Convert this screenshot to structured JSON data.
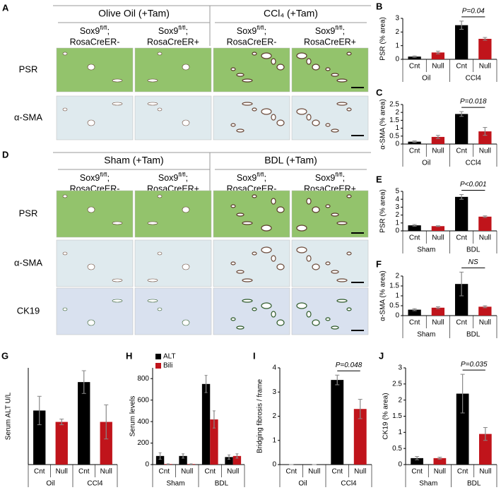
{
  "panel_a": {
    "label": "A",
    "groups": [
      "Olive Oil (+Tam)",
      "CCl₄ (+Tam)"
    ],
    "genotypes": [
      {
        "gene": "Sox9",
        "sup": "fl/fl",
        "sep": ";",
        "line2": "RosaCreER-"
      },
      {
        "gene": "Sox9",
        "sup": "fl/fl",
        "sep": ";",
        "line2": "RosaCreER+"
      },
      {
        "gene": "Sox9",
        "sup": "fl/fl",
        "sep": ";",
        "line2": "RosaCreER-"
      },
      {
        "gene": "Sox9",
        "sup": "fl/fl",
        "sep": ";",
        "line2": "RosaCreER+"
      }
    ],
    "rows": [
      "PSR",
      "α-SMA"
    ]
  },
  "panel_d": {
    "label": "D",
    "groups": [
      "Sham (+Tam)",
      "BDL (+Tam)"
    ],
    "genotypes": [
      {
        "gene": "Sox9",
        "sup": "fl/fl",
        "sep": ";",
        "line2": "RosaCreER-"
      },
      {
        "gene": "Sox9",
        "sup": "fl/fl",
        "sep": ";",
        "line2": "RosaCreER+"
      },
      {
        "gene": "Sox9",
        "sup": "fl/fl",
        "sep": ";",
        "line2": "RosaCreER-"
      },
      {
        "gene": "Sox9",
        "sup": "fl/fl",
        "sep": ";",
        "line2": "RosaCreER+"
      }
    ],
    "rows": [
      "PSR",
      "α-SMA",
      "CK19"
    ]
  },
  "chart_data": [
    {
      "type": "bar",
      "label": "B",
      "ylabel": "PSR (% area)",
      "categories": [
        "Cnt",
        "Null",
        "Cnt",
        "Null"
      ],
      "groups": [
        "Oil",
        "CCl4"
      ],
      "values": [
        0.2,
        0.5,
        2.5,
        1.5
      ],
      "errors": [
        0.05,
        0.1,
        0.3,
        0.1
      ],
      "colors": [
        "#000000",
        "#c0141b",
        "#000000",
        "#c0141b"
      ],
      "ylim": [
        0,
        3
      ],
      "yticks": [
        0,
        1,
        2,
        3
      ],
      "annotation": "P=0.04"
    },
    {
      "type": "bar",
      "label": "C",
      "ylabel": "α-SMA (% area)",
      "categories": [
        "Cnt",
        "Null",
        "Cnt",
        "Null"
      ],
      "groups": [
        "Oil",
        "CCl4"
      ],
      "values": [
        0.15,
        0.45,
        1.9,
        0.8
      ],
      "errors": [
        0.05,
        0.1,
        0.15,
        0.25
      ],
      "colors": [
        "#000000",
        "#c0141b",
        "#000000",
        "#c0141b"
      ],
      "ylim": [
        0,
        2.5
      ],
      "yticks": [
        0,
        0.5,
        1,
        1.5,
        2,
        2.5
      ],
      "annotation": "P=0.018"
    },
    {
      "type": "bar",
      "label": "E",
      "ylabel": "PSR (% area)",
      "categories": [
        "Cnt",
        "Null",
        "Cnt",
        "Null"
      ],
      "groups": [
        "Sham",
        "BDL"
      ],
      "values": [
        0.7,
        0.6,
        4.3,
        1.8
      ],
      "errors": [
        0.1,
        0.05,
        0.3,
        0.1
      ],
      "colors": [
        "#000000",
        "#c0141b",
        "#000000",
        "#c0141b"
      ],
      "ylim": [
        0,
        5
      ],
      "yticks": [
        0,
        1,
        2,
        3,
        4,
        5
      ],
      "annotation": "P<0.001"
    },
    {
      "type": "bar",
      "label": "F",
      "ylabel": "α-SMA (% area)",
      "categories": [
        "Cnt",
        "Null",
        "Cnt",
        "Null"
      ],
      "groups": [
        "Sham",
        "BDL"
      ],
      "values": [
        0.3,
        0.4,
        1.6,
        0.45
      ],
      "errors": [
        0.05,
        0.05,
        0.6,
        0.05
      ],
      "colors": [
        "#000000",
        "#c0141b",
        "#000000",
        "#c0141b"
      ],
      "ylim": [
        0,
        2
      ],
      "yticks": [
        0,
        0.5,
        1,
        1.5,
        2
      ],
      "annotation": "NS"
    },
    {
      "type": "bar",
      "label": "G",
      "ylabel": "Serum ALT U/L",
      "categories": [
        "Cnt",
        "Null",
        "Cnt",
        "Null"
      ],
      "groups": [
        "Oil",
        "CCl4"
      ],
      "values": [
        95,
        75,
        145,
        75
      ],
      "errors": [
        25,
        5,
        20,
        30
      ],
      "colors": [
        "#000000",
        "#c0141b",
        "#000000",
        "#c0141b"
      ],
      "ylim": [
        0,
        170
      ]
    },
    {
      "type": "grouped_bar",
      "label": "H",
      "ylabel": "Serum levels",
      "categories": [
        "Cnt",
        "Null",
        "Cnt",
        "Null"
      ],
      "groups": [
        "Sham",
        "BDL"
      ],
      "series": [
        {
          "name": "ALT",
          "color": "#000000",
          "values": [
            80,
            80,
            750,
            70
          ],
          "errors": [
            30,
            20,
            80,
            20
          ]
        },
        {
          "name": "Bili",
          "color": "#c0141b",
          "values": [
            5,
            5,
            420,
            80
          ],
          "errors": [
            2,
            2,
            80,
            20
          ]
        }
      ],
      "ylim": [
        0,
        900
      ],
      "yticks": [
        0,
        200,
        400,
        600,
        800
      ]
    },
    {
      "type": "bar",
      "label": "I",
      "ylabel": "Bridging fibrosis / frame",
      "categories": [
        "Cnt",
        "Null",
        "Cnt",
        "Null"
      ],
      "groups": [
        "Oil",
        "CCl4"
      ],
      "values": [
        0,
        0,
        3.5,
        2.3
      ],
      "errors": [
        0,
        0,
        0.2,
        0.4
      ],
      "colors": [
        "#000000",
        "#c0141b",
        "#000000",
        "#c0141b"
      ],
      "ylim": [
        0,
        4
      ],
      "yticks": [
        0,
        1,
        2,
        3,
        4
      ],
      "annotation": "P=0.048"
    },
    {
      "type": "bar",
      "label": "J",
      "ylabel": "CK19 (% area)",
      "categories": [
        "Cnt",
        "Null",
        "Cnt",
        "Null"
      ],
      "groups": [
        "Sham",
        "BDL"
      ],
      "values": [
        0.2,
        0.2,
        2.2,
        0.95
      ],
      "errors": [
        0.05,
        0.03,
        0.6,
        0.2
      ],
      "colors": [
        "#000000",
        "#c0141b",
        "#000000",
        "#c0141b"
      ],
      "ylim": [
        0,
        3
      ],
      "yticks": [
        0,
        0.5,
        1,
        1.5,
        2,
        2.5,
        3
      ],
      "annotation": "P=0.035"
    }
  ]
}
